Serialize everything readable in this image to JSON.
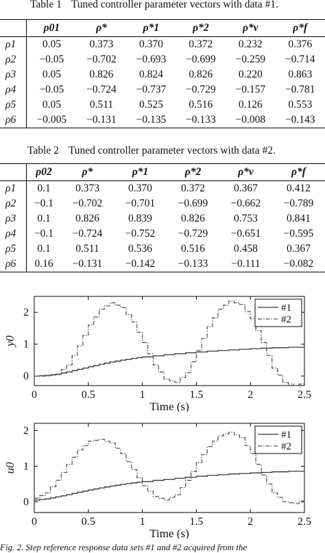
{
  "table1": {
    "label": "Table 1",
    "title": "Tuned controller parameter vectors with data #1.",
    "headers": [
      "ρ01",
      "ρ*",
      "ρ*1",
      "ρ*2",
      "ρ*v",
      "ρ*f"
    ],
    "rows": [
      {
        "name": "ρ1",
        "values": [
          "0.05",
          "0.373",
          "0.370",
          "0.372",
          "0.232",
          "0.376"
        ]
      },
      {
        "name": "ρ2",
        "values": [
          "−0.05",
          "−0.702",
          "−0.693",
          "−0.699",
          "−0.259",
          "−0.714"
        ]
      },
      {
        "name": "ρ3",
        "values": [
          "0.05",
          "0.826",
          "0.824",
          "0.826",
          "0.220",
          "0.863"
        ]
      },
      {
        "name": "ρ4",
        "values": [
          "−0.05",
          "−0.724",
          "−0.737",
          "−0.729",
          "−0.157",
          "−0.781"
        ]
      },
      {
        "name": "ρ5",
        "values": [
          "0.05",
          "0.511",
          "0.525",
          "0.516",
          "0.126",
          "0.553"
        ]
      },
      {
        "name": "ρ6",
        "values": [
          "−0.005",
          "−0.131",
          "−0.135",
          "−0.133",
          "−0.008",
          "−0.143"
        ]
      }
    ]
  },
  "table2": {
    "label": "Table 2",
    "title": "Tuned controller parameter vectors with data #2.",
    "headers": [
      "ρ02",
      "ρ*",
      "ρ*1",
      "ρ*2",
      "ρ*v",
      "ρ*f"
    ],
    "rows": [
      {
        "name": "ρ1",
        "values": [
          "0.1",
          "0.373",
          "0.370",
          "0.372",
          "0.367",
          "0.412"
        ]
      },
      {
        "name": "ρ2",
        "values": [
          "−0.1",
          "−0.702",
          "−0.701",
          "−0.699",
          "−0.662",
          "−0.789"
        ]
      },
      {
        "name": "ρ3",
        "values": [
          "0.1",
          "0.826",
          "0.839",
          "0.826",
          "0.753",
          "0.841"
        ]
      },
      {
        "name": "ρ4",
        "values": [
          "−0.1",
          "−0.724",
          "−0.752",
          "−0.729",
          "−0.651",
          "−0.595"
        ]
      },
      {
        "name": "ρ5",
        "values": [
          "0.1",
          "0.511",
          "0.536",
          "0.516",
          "0.458",
          "0.367"
        ]
      },
      {
        "name": "ρ6",
        "values": [
          "0.16",
          "−0.131",
          "−0.142",
          "−0.133",
          "−0.111",
          "−0.082"
        ]
      }
    ]
  },
  "figure_caption": "Fig. 2.   Step reference response data sets #1 and #2 acquired from the",
  "chart_data": [
    {
      "type": "line",
      "ylabel": "y0",
      "xlabel": "Time (s)",
      "xlim": [
        0,
        2.5
      ],
      "ylim": [
        -0.3,
        2.5
      ],
      "xticks": [
        "0",
        "0.5",
        "1",
        "1.5",
        "2",
        "2.5"
      ],
      "yticks": [
        "0",
        "1",
        "2"
      ],
      "grid": false,
      "legend_position": "top-right",
      "series": [
        {
          "name": "#1",
          "style": "solid",
          "color": "#333333",
          "x": [
            0,
            0.1,
            0.2,
            0.3,
            0.4,
            0.5,
            0.6,
            0.7,
            0.8,
            0.9,
            1.0,
            1.2,
            1.4,
            1.6,
            1.8,
            2.0,
            2.2,
            2.5
          ],
          "y": [
            0,
            0.02,
            0.06,
            0.13,
            0.21,
            0.29,
            0.37,
            0.44,
            0.5,
            0.55,
            0.6,
            0.67,
            0.73,
            0.78,
            0.82,
            0.86,
            0.89,
            0.92
          ]
        },
        {
          "name": "#2",
          "style": "dashdot",
          "color": "#555555",
          "x": [
            0,
            0.1,
            0.2,
            0.3,
            0.4,
            0.5,
            0.6,
            0.7,
            0.8,
            0.9,
            1.0,
            1.1,
            1.2,
            1.3,
            1.4,
            1.5,
            1.6,
            1.7,
            1.8,
            1.9,
            2.0,
            2.1,
            2.2,
            2.3,
            2.4,
            2.5
          ],
          "y": [
            0,
            0.0,
            0.05,
            0.35,
            0.95,
            1.6,
            2.1,
            2.3,
            2.15,
            1.7,
            1.05,
            0.35,
            -0.1,
            -0.2,
            0.1,
            0.8,
            1.55,
            2.1,
            2.35,
            2.25,
            1.8,
            1.05,
            0.25,
            -0.2,
            -0.3,
            -0.2
          ]
        }
      ]
    },
    {
      "type": "line",
      "ylabel": "u0",
      "xlabel": "Time (s)",
      "xlim": [
        0,
        2.5
      ],
      "ylim": [
        -0.3,
        2.2
      ],
      "xticks": [
        "0",
        "0.5",
        "1",
        "1.5",
        "2",
        "2.5"
      ],
      "yticks": [
        "0",
        "1",
        "2"
      ],
      "grid": false,
      "legend_position": "top-right",
      "series": [
        {
          "name": "#1",
          "style": "solid",
          "color": "#333333",
          "x": [
            0,
            0.1,
            0.2,
            0.3,
            0.4,
            0.5,
            0.6,
            0.7,
            0.8,
            0.9,
            1.0,
            1.2,
            1.4,
            1.6,
            1.8,
            2.0,
            2.2,
            2.5
          ],
          "y": [
            0.05,
            0.08,
            0.14,
            0.2,
            0.27,
            0.33,
            0.39,
            0.44,
            0.49,
            0.53,
            0.57,
            0.63,
            0.69,
            0.74,
            0.78,
            0.81,
            0.84,
            0.87
          ]
        },
        {
          "name": "#2",
          "style": "dashdot",
          "color": "#555555",
          "x": [
            0,
            0.1,
            0.2,
            0.3,
            0.4,
            0.5,
            0.6,
            0.7,
            0.8,
            0.9,
            1.0,
            1.1,
            1.2,
            1.3,
            1.4,
            1.5,
            1.6,
            1.7,
            1.8,
            1.9,
            2.0,
            2.1,
            2.2,
            2.3,
            2.4,
            2.5
          ],
          "y": [
            0.1,
            0.25,
            0.6,
            1.05,
            1.45,
            1.7,
            1.75,
            1.65,
            1.35,
            0.9,
            0.45,
            0.15,
            0.05,
            0.2,
            0.6,
            1.1,
            1.55,
            1.85,
            1.95,
            1.8,
            1.35,
            0.75,
            0.25,
            0.0,
            -0.05,
            0.1
          ]
        }
      ]
    }
  ]
}
